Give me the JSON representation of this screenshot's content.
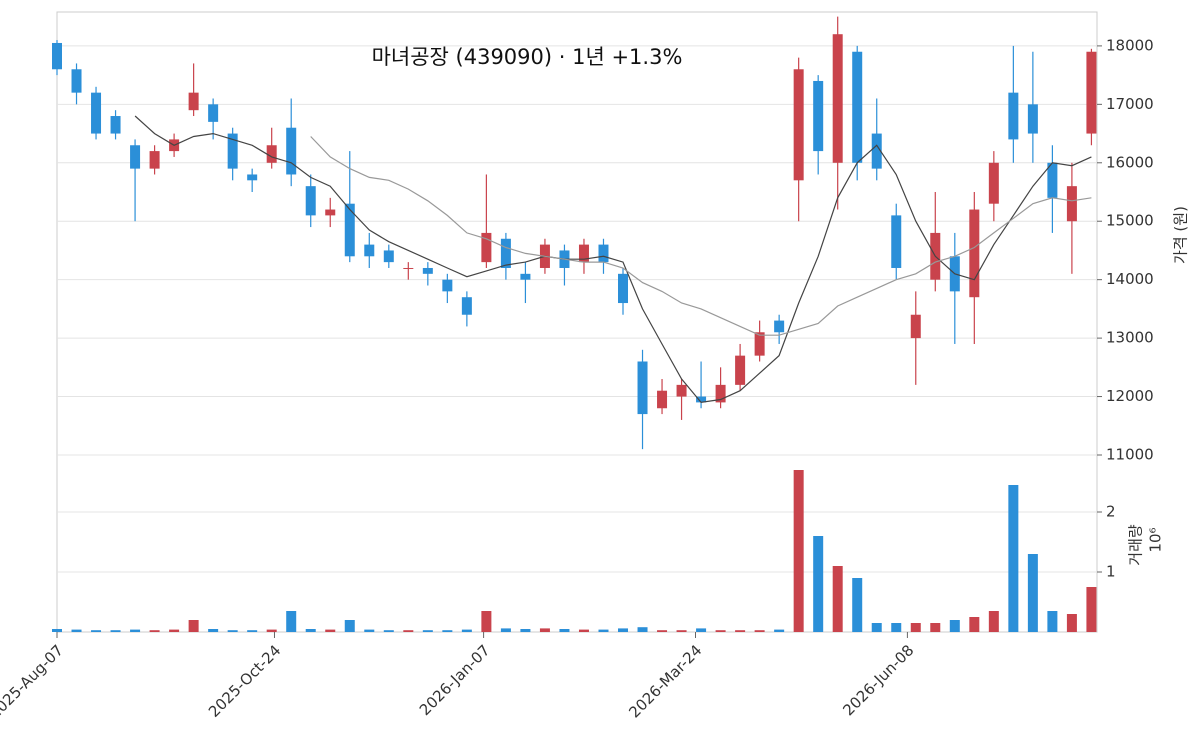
{
  "chart_data": [
    {
      "type": "candlestick",
      "title": "마녀공장 (439090)  ·  1년 +1.3%",
      "y_label": "가격 (원)",
      "x": [
        "2025-08-07",
        "2025-08-14",
        "2025-08-21",
        "2025-08-28",
        "2025-09-04",
        "2025-09-11",
        "2025-09-18",
        "2025-09-25",
        "2025-10-02",
        "2025-10-09",
        "2025-10-16",
        "2025-10-23",
        "2025-10-30",
        "2025-11-06",
        "2025-11-13",
        "2025-11-20",
        "2025-11-27",
        "2025-12-04",
        "2025-12-11",
        "2025-12-18",
        "2025-12-25",
        "2026-01-01",
        "2026-01-08",
        "2026-01-15",
        "2026-01-22",
        "2026-01-29",
        "2026-02-05",
        "2026-02-12",
        "2026-02-19",
        "2026-02-26",
        "2026-03-05",
        "2026-03-12",
        "2026-03-19",
        "2026-03-26",
        "2026-04-02",
        "2026-04-09",
        "2026-04-16",
        "2026-04-23",
        "2026-04-30",
        "2026-05-07",
        "2026-05-14",
        "2026-05-21",
        "2026-05-28",
        "2026-06-04",
        "2026-06-11",
        "2026-06-18",
        "2026-06-25",
        "2026-07-02",
        "2026-07-09",
        "2026-07-16",
        "2026-07-23",
        "2026-07-30",
        "2026-08-06",
        "2026-08-13"
      ],
      "open": [
        18050,
        17600,
        17200,
        16800,
        16300,
        15900,
        16200,
        16900,
        17000,
        16500,
        15800,
        16000,
        16600,
        15600,
        15100,
        15300,
        14600,
        14500,
        14200,
        14200,
        14000,
        13700,
        14300,
        14700,
        14100,
        14200,
        14500,
        14300,
        14600,
        14100,
        12600,
        11800,
        12000,
        12000,
        11900,
        12200,
        12700,
        13300,
        15700,
        17400,
        16000,
        17900,
        16500,
        15100,
        13000,
        14000,
        14400,
        13700,
        15300,
        17200,
        17000,
        16000,
        15000,
        16500
      ],
      "high": [
        18100,
        17700,
        17300,
        16900,
        16400,
        16300,
        16500,
        17700,
        17100,
        16600,
        15900,
        16600,
        17100,
        15800,
        15400,
        16200,
        14800,
        14600,
        14300,
        14300,
        14100,
        13800,
        15800,
        14800,
        14300,
        14700,
        14600,
        14700,
        14700,
        14200,
        12800,
        12300,
        12300,
        12600,
        12500,
        12900,
        13300,
        13400,
        17800,
        17500,
        18500,
        18000,
        17100,
        15300,
        13800,
        15500,
        14800,
        15500,
        16200,
        18000,
        17900,
        16300,
        16000,
        17950
      ],
      "low": [
        17500,
        17000,
        16400,
        16400,
        15000,
        15800,
        16100,
        16800,
        16400,
        15700,
        15500,
        15900,
        15600,
        14900,
        14900,
        14300,
        14200,
        14200,
        14000,
        13900,
        13600,
        13200,
        14200,
        14000,
        13600,
        14100,
        13900,
        14100,
        14100,
        13400,
        11100,
        11700,
        11600,
        11800,
        11800,
        12100,
        12600,
        12900,
        15000,
        15800,
        15200,
        15700,
        15700,
        14000,
        12200,
        13800,
        12900,
        12900,
        15000,
        16000,
        16000,
        14800,
        14100,
        16300
      ],
      "close": [
        17600,
        17200,
        16500,
        16500,
        15900,
        16200,
        16400,
        17200,
        16700,
        15900,
        15700,
        16300,
        15800,
        15100,
        15200,
        14400,
        14400,
        14300,
        14200,
        14100,
        13800,
        13400,
        14800,
        14200,
        14000,
        14600,
        14200,
        14600,
        14300,
        13600,
        11700,
        12100,
        12200,
        11900,
        12200,
        12700,
        13100,
        13100,
        17600,
        16200,
        18200,
        16000,
        15900,
        14200,
        13400,
        14800,
        13800,
        15200,
        16000,
        16400,
        16500,
        15400,
        15600,
        17900
      ],
      "lines": [
        {
          "color": "#444444",
          "values": [
            null,
            null,
            null,
            null,
            16800,
            16500,
            16300,
            16450,
            16500,
            16400,
            16300,
            16100,
            16000,
            15750,
            15600,
            15200,
            14850,
            14650,
            14500,
            14350,
            14200,
            14050,
            14150,
            14250,
            14300,
            14400,
            14350,
            14350,
            14400,
            14300,
            13500,
            12900,
            12300,
            11900,
            11950,
            12100,
            12400,
            12700,
            13600,
            14400,
            15400,
            16000,
            16300,
            15800,
            15000,
            14400,
            14100,
            14000,
            14600,
            15100,
            15600,
            16000,
            15950,
            16100
          ]
        },
        {
          "color": "#999999",
          "values": [
            null,
            null,
            null,
            null,
            null,
            null,
            null,
            null,
            null,
            null,
            null,
            null,
            null,
            16450,
            16100,
            15900,
            15750,
            15700,
            15550,
            15350,
            15100,
            14800,
            14700,
            14550,
            14450,
            14400,
            14350,
            14300,
            14300,
            14200,
            13950,
            13800,
            13600,
            13500,
            13350,
            13200,
            13050,
            13050,
            13150,
            13250,
            13550,
            13700,
            13850,
            14000,
            14100,
            14300,
            14400,
            14550,
            14800,
            15050,
            15300,
            15400,
            15350,
            15400
          ]
        }
      ],
      "up_color": "#c9434c",
      "down_color": "#2b8fd8",
      "ylim": [
        11000,
        18580
      ],
      "yticks": [
        11000,
        12000,
        13000,
        14000,
        15000,
        16000,
        17000,
        18000
      ],
      "xlim": [
        "2025-08-07",
        "2026-08-15"
      ],
      "xticks": [
        {
          "value": "2025-08-07",
          "label": "2025-Aug-07"
        },
        {
          "value": "2025-10-24",
          "label": "2025-Oct-24"
        },
        {
          "value": "2026-01-07",
          "label": "2026-Jan-07"
        },
        {
          "value": "2026-03-24",
          "label": "2026-Mar-24"
        },
        {
          "value": "2026-06-08",
          "label": "2026-Jun-08"
        }
      ],
      "grid": true
    },
    {
      "type": "bar",
      "y_label": "거래량",
      "scale_label": "10⁶",
      "x": [
        "2025-08-07",
        "2025-08-14",
        "2025-08-21",
        "2025-08-28",
        "2025-09-04",
        "2025-09-11",
        "2025-09-18",
        "2025-09-25",
        "2025-10-02",
        "2025-10-09",
        "2025-10-16",
        "2025-10-23",
        "2025-10-30",
        "2025-11-06",
        "2025-11-13",
        "2025-11-20",
        "2025-11-27",
        "2025-12-04",
        "2025-12-11",
        "2025-12-18",
        "2025-12-25",
        "2026-01-01",
        "2026-01-08",
        "2026-01-15",
        "2026-01-22",
        "2026-01-29",
        "2026-02-05",
        "2026-02-12",
        "2026-02-19",
        "2026-02-26",
        "2026-03-05",
        "2026-03-12",
        "2026-03-19",
        "2026-03-26",
        "2026-04-02",
        "2026-04-09",
        "2026-04-16",
        "2026-04-23",
        "2026-04-30",
        "2026-05-07",
        "2026-05-14",
        "2026-05-21",
        "2026-05-28",
        "2026-06-04",
        "2026-06-11",
        "2026-06-18",
        "2026-06-25",
        "2026-07-02",
        "2026-07-09",
        "2026-07-16",
        "2026-07-23",
        "2026-07-30",
        "2026-08-06",
        "2026-08-13"
      ],
      "values": [
        0.05,
        0.04,
        0.03,
        0.03,
        0.04,
        0.03,
        0.04,
        0.2,
        0.05,
        0.03,
        0.03,
        0.04,
        0.35,
        0.05,
        0.04,
        0.2,
        0.04,
        0.03,
        0.03,
        0.03,
        0.03,
        0.04,
        0.35,
        0.06,
        0.05,
        0.06,
        0.05,
        0.04,
        0.04,
        0.06,
        0.08,
        0.03,
        0.03,
        0.06,
        0.03,
        0.03,
        0.03,
        0.04,
        2.7,
        1.6,
        1.1,
        0.9,
        0.15,
        0.15,
        0.15,
        0.15,
        0.2,
        0.25,
        0.35,
        2.45,
        1.3,
        0.35,
        0.3,
        0.75
      ],
      "ylim": [
        0,
        2.95
      ],
      "yticks": [
        1,
        2
      ],
      "grid": true
    }
  ]
}
